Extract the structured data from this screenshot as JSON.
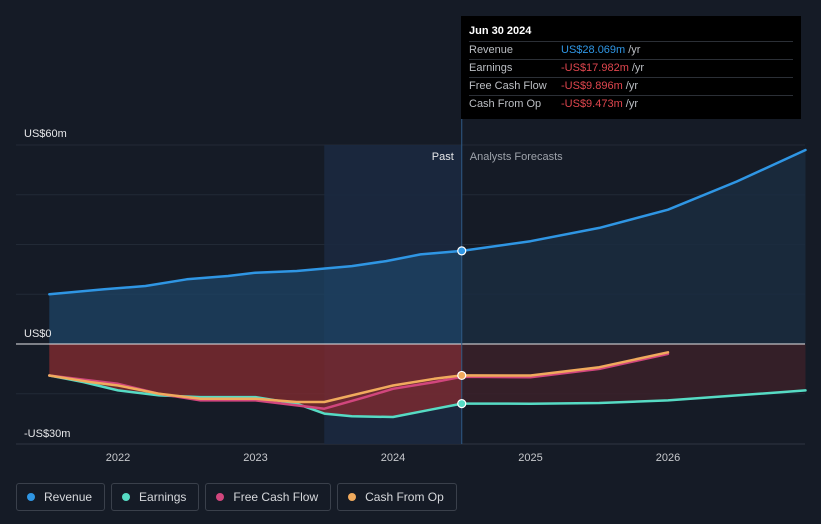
{
  "chart_data": {
    "type": "area",
    "y_axis_labels": [
      "US$60m",
      "US$0",
      "-US$30m"
    ],
    "ylim": [
      -30,
      60
    ],
    "x_tick_labels": [
      "2022",
      "2023",
      "2024",
      "2025",
      "2026"
    ],
    "divider_labels": {
      "past": "Past",
      "forecast": "Analysts Forecasts"
    },
    "series": [
      {
        "name": "Revenue",
        "color": "#2f96e4",
        "x": [
          2021.5,
          2021.9,
          2022.2,
          2022.5,
          2022.8,
          2023.0,
          2023.3,
          2023.7,
          2023.95,
          2024.2,
          2024.5,
          2025.0,
          2025.5,
          2026.0,
          2026.5,
          2027.0
        ],
        "y": [
          15,
          16.5,
          17.5,
          19.5,
          20.5,
          21.5,
          22,
          23.5,
          25,
          27,
          28.069,
          31,
          35,
          40.5,
          49,
          58.5
        ]
      },
      {
        "name": "Earnings",
        "color": "#56dbc4",
        "x": [
          2021.5,
          2021.75,
          2022.0,
          2022.3,
          2022.6,
          2023.0,
          2023.3,
          2023.5,
          2023.7,
          2024.0,
          2024.25,
          2024.5,
          2025.0,
          2025.5,
          2026.0,
          2026.5,
          2027.0
        ],
        "y": [
          -9.5,
          -11.5,
          -14,
          -15.5,
          -16,
          -16,
          -18,
          -21,
          -21.8,
          -22,
          -20,
          -17.982,
          -18,
          -17.8,
          -17,
          -15.5,
          -14
        ]
      },
      {
        "name": "Free Cash Flow",
        "color": "#d1467d",
        "x": [
          2021.5,
          2021.8,
          2022.0,
          2022.3,
          2022.6,
          2023.0,
          2023.3,
          2023.5,
          2023.8,
          2024.0,
          2024.3,
          2024.5,
          2025.0,
          2025.5,
          2026.0
        ],
        "y": [
          -9.5,
          -11,
          -12,
          -15,
          -17,
          -17,
          -18.5,
          -19.5,
          -16,
          -13.5,
          -11.5,
          -9.896,
          -10,
          -7.5,
          -3
        ]
      },
      {
        "name": "Cash From Op",
        "color": "#f0aa5d",
        "x": [
          2021.5,
          2021.8,
          2022.0,
          2022.3,
          2022.6,
          2023.0,
          2023.3,
          2023.5,
          2023.8,
          2024.0,
          2024.3,
          2024.5,
          2025.0,
          2025.5,
          2026.0
        ],
        "y": [
          -9.5,
          -11.5,
          -12.5,
          -15,
          -16.5,
          -16.5,
          -17.5,
          -17.5,
          -14.5,
          -12.5,
          -10.5,
          -9.473,
          -9.5,
          -7,
          -2.5
        ]
      }
    ],
    "tooltip": {
      "date": "Jun 30 2024",
      "rows": [
        {
          "label": "Revenue",
          "value": "US$28.069m",
          "unit": "/yr",
          "color": "#2f96e4"
        },
        {
          "label": "Earnings",
          "value": "-US$17.982m",
          "unit": "/yr",
          "color": "#e0464e"
        },
        {
          "label": "Free Cash Flow",
          "value": "-US$9.896m",
          "unit": "/yr",
          "color": "#e0464e"
        },
        {
          "label": "Cash From Op",
          "value": "-US$9.473m",
          "unit": "/yr",
          "color": "#e0464e"
        }
      ]
    },
    "past_end_x": 2024.5,
    "past_highlight_start_x": 2023.5
  }
}
